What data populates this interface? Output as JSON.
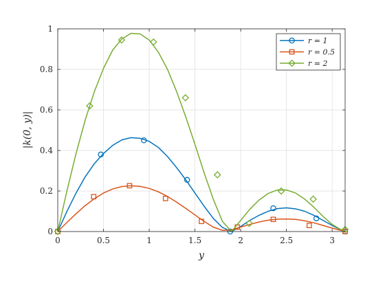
{
  "chart_data": {
    "type": "line",
    "xlabel": "y",
    "ylabel": "|k(0, y)|",
    "xlim": [
      0,
      3.14159
    ],
    "ylim": [
      0,
      1
    ],
    "xticks": [
      0,
      0.5,
      1,
      1.5,
      2,
      2.5,
      3
    ],
    "xtick_labels": [
      "0",
      "0.5",
      "1",
      "1.5",
      "2",
      "2.5",
      "3"
    ],
    "yticks": [
      0,
      0.2,
      0.4,
      0.6,
      0.8,
      1
    ],
    "ytick_labels": [
      "0",
      "0.2",
      "0.4",
      "0.6",
      "0.8",
      "1"
    ],
    "grid": true,
    "legend_position": "top-right",
    "series": [
      {
        "name": "r = 1",
        "color": "#0072BD",
        "marker": "circle",
        "x": [
          0,
          0.1,
          0.2,
          0.3,
          0.4,
          0.5,
          0.6,
          0.7,
          0.8,
          0.9,
          1.0,
          1.1,
          1.2,
          1.3,
          1.4,
          1.5,
          1.6,
          1.7,
          1.8,
          1.9,
          2.0,
          2.1,
          2.2,
          2.3,
          2.4,
          2.5,
          2.6,
          2.7,
          2.8,
          2.9,
          3.0,
          3.1,
          3.1416
        ],
        "y": [
          0,
          0.099,
          0.19,
          0.27,
          0.335,
          0.385,
          0.425,
          0.452,
          0.463,
          0.46,
          0.445,
          0.415,
          0.37,
          0.315,
          0.255,
          0.19,
          0.125,
          0.065,
          0.02,
          0.0,
          0.025,
          0.055,
          0.08,
          0.1,
          0.113,
          0.117,
          0.112,
          0.1,
          0.08,
          0.055,
          0.03,
          0.008,
          0
        ],
        "markers_x": [
          0,
          0.471,
          0.942,
          1.414,
          1.885,
          2.356,
          2.827,
          3.1416
        ],
        "markers_y": [
          0,
          0.38,
          0.45,
          0.255,
          0.0,
          0.115,
          0.065,
          0
        ]
      },
      {
        "name": "r = 0.5",
        "color": "#D95319",
        "marker": "square",
        "x": [
          0,
          0.1,
          0.2,
          0.3,
          0.4,
          0.5,
          0.6,
          0.7,
          0.8,
          0.9,
          1.0,
          1.1,
          1.2,
          1.3,
          1.4,
          1.5,
          1.6,
          1.7,
          1.8,
          1.9,
          2.0,
          2.1,
          2.2,
          2.3,
          2.4,
          2.5,
          2.6,
          2.7,
          2.8,
          2.9,
          3.0,
          3.1,
          3.1416
        ],
        "y": [
          0,
          0.045,
          0.088,
          0.128,
          0.162,
          0.19,
          0.21,
          0.222,
          0.226,
          0.223,
          0.213,
          0.196,
          0.173,
          0.145,
          0.114,
          0.082,
          0.05,
          0.022,
          0.006,
          0.008,
          0.022,
          0.035,
          0.047,
          0.056,
          0.061,
          0.062,
          0.06,
          0.053,
          0.043,
          0.03,
          0.017,
          0.005,
          0
        ],
        "markers_x": [
          0,
          0.393,
          0.785,
          1.178,
          1.571,
          1.963,
          2.356,
          2.749,
          3.1416
        ],
        "markers_y": [
          0,
          0.172,
          0.226,
          0.163,
          0.05,
          0.022,
          0.06,
          0.03,
          0
        ]
      },
      {
        "name": "r = 2",
        "color": "#77AC30",
        "marker": "diamond",
        "x": [
          0,
          0.1,
          0.2,
          0.3,
          0.4,
          0.5,
          0.6,
          0.7,
          0.8,
          0.9,
          1.0,
          1.1,
          1.2,
          1.3,
          1.4,
          1.5,
          1.6,
          1.7,
          1.8,
          1.9,
          2.0,
          2.1,
          2.2,
          2.3,
          2.4,
          2.5,
          2.6,
          2.7,
          2.8,
          2.9,
          3.0,
          3.1,
          3.1416
        ],
        "y": [
          0,
          0.2,
          0.385,
          0.55,
          0.69,
          0.805,
          0.895,
          0.95,
          0.978,
          0.975,
          0.945,
          0.885,
          0.8,
          0.69,
          0.565,
          0.43,
          0.29,
          0.16,
          0.05,
          0.0,
          0.055,
          0.11,
          0.155,
          0.188,
          0.205,
          0.205,
          0.19,
          0.16,
          0.12,
          0.075,
          0.035,
          0.008,
          0
        ],
        "markers_x": [
          0,
          0.349,
          0.698,
          1.047,
          1.396,
          1.745,
          2.094,
          2.443,
          2.793,
          3.1416
        ],
        "markers_y": [
          0,
          0.62,
          0.945,
          0.935,
          0.66,
          0.28,
          0.04,
          0.2,
          0.16,
          0.01
        ]
      }
    ]
  }
}
